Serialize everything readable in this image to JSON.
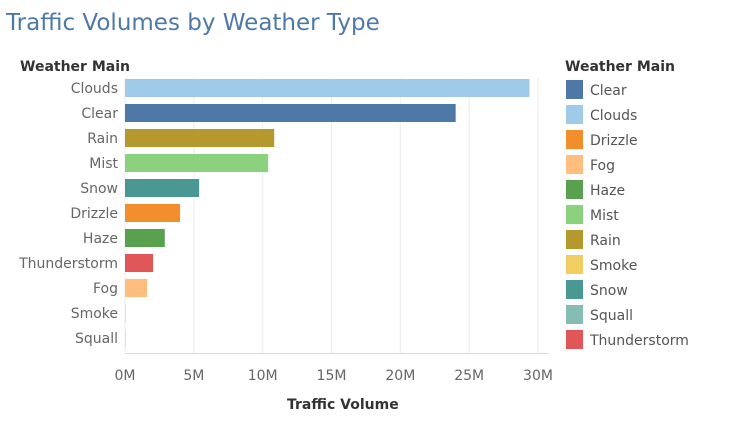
{
  "chart_data": {
    "type": "bar",
    "orientation": "horizontal",
    "title": "Traffic Volumes by Weather Type",
    "row_header": "Weather Main",
    "xlabel": "Traffic Volume",
    "categories": [
      "Clouds",
      "Clear",
      "Rain",
      "Mist",
      "Snow",
      "Drizzle",
      "Haze",
      "Thunderstorm",
      "Fog",
      "Smoke",
      "Squall"
    ],
    "values": [
      29380000,
      24020000,
      10840000,
      10400000,
      5380000,
      4000000,
      2890000,
      2040000,
      1610000,
      40000,
      20000
    ],
    "xlim": [
      0,
      30000000
    ],
    "xticks": [
      0,
      5000000,
      10000000,
      15000000,
      20000000,
      25000000,
      30000000
    ],
    "xtick_labels": [
      "0M",
      "5M",
      "10M",
      "15M",
      "20M",
      "25M",
      "30M"
    ],
    "grid": "vertical",
    "legend": {
      "title": "Weather Main",
      "position": "right",
      "entries": [
        {
          "label": "Clear",
          "color": "#4e79a7"
        },
        {
          "label": "Clouds",
          "color": "#a0cbe8"
        },
        {
          "label": "Drizzle",
          "color": "#f28e2b"
        },
        {
          "label": "Fog",
          "color": "#ffbe7d"
        },
        {
          "label": "Haze",
          "color": "#59a14f"
        },
        {
          "label": "Mist",
          "color": "#8cd17d"
        },
        {
          "label": "Rain",
          "color": "#b6992d"
        },
        {
          "label": "Smoke",
          "color": "#f1ce63"
        },
        {
          "label": "Snow",
          "color": "#499894"
        },
        {
          "label": "Squall",
          "color": "#86bcb6"
        },
        {
          "label": "Thunderstorm",
          "color": "#e15759"
        }
      ]
    }
  }
}
